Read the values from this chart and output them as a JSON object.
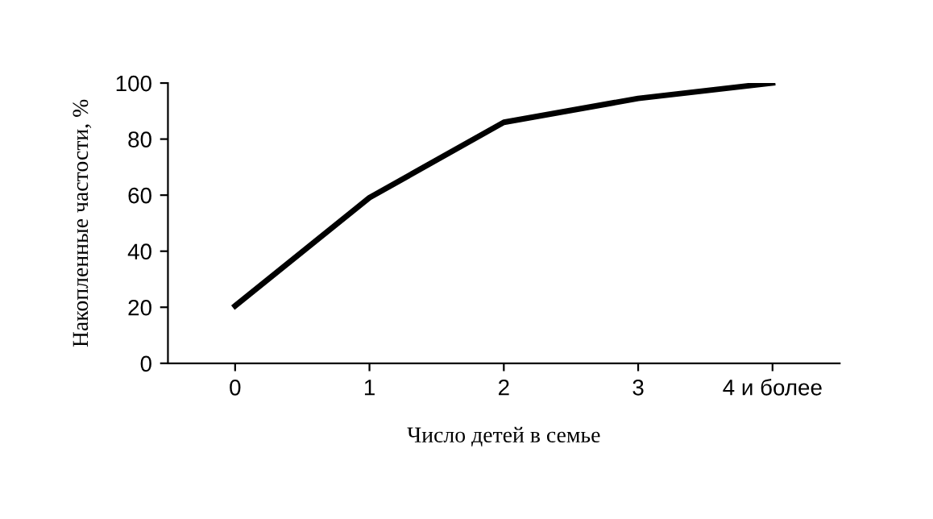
{
  "chart_data": {
    "type": "line",
    "xlabel": "Число детей в семье",
    "ylabel": "Накопленные частости, %",
    "categories": [
      "0",
      "1",
      "2",
      "3",
      "4 и более"
    ],
    "series": [
      {
        "color": "#000000",
        "values": [
          20.5,
          59.1,
          86.0,
          94.5,
          100
        ]
      }
    ],
    "ylim": [
      0,
      100
    ],
    "yticks": [
      0,
      20,
      40,
      60,
      80,
      100
    ],
    "grid": false,
    "legend": false,
    "marker": "none",
    "line_style": "solid"
  }
}
